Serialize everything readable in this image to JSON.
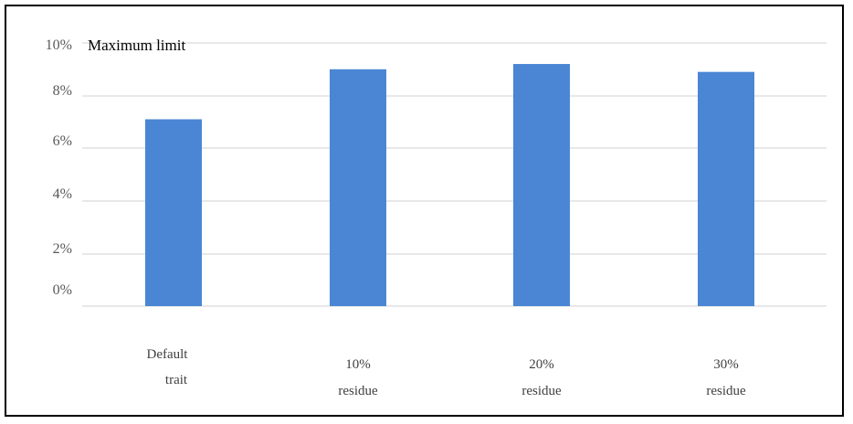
{
  "chart_data": {
    "type": "bar",
    "categories": [
      [
        "Default",
        "trait"
      ],
      [
        "10%",
        "residue"
      ],
      [
        "20%",
        "residue"
      ],
      [
        "30%",
        "residue"
      ]
    ],
    "values": [
      7.1,
      9.0,
      9.2,
      8.9
    ],
    "yticks": [
      "0%",
      "2%",
      "4%",
      "6%",
      "8%",
      "10%"
    ],
    "ylim": [
      0,
      10
    ],
    "annotation": "Maximum limit",
    "grid": true,
    "bar_color": "#4a86d4",
    "grid_color": "#d9d9d9"
  }
}
